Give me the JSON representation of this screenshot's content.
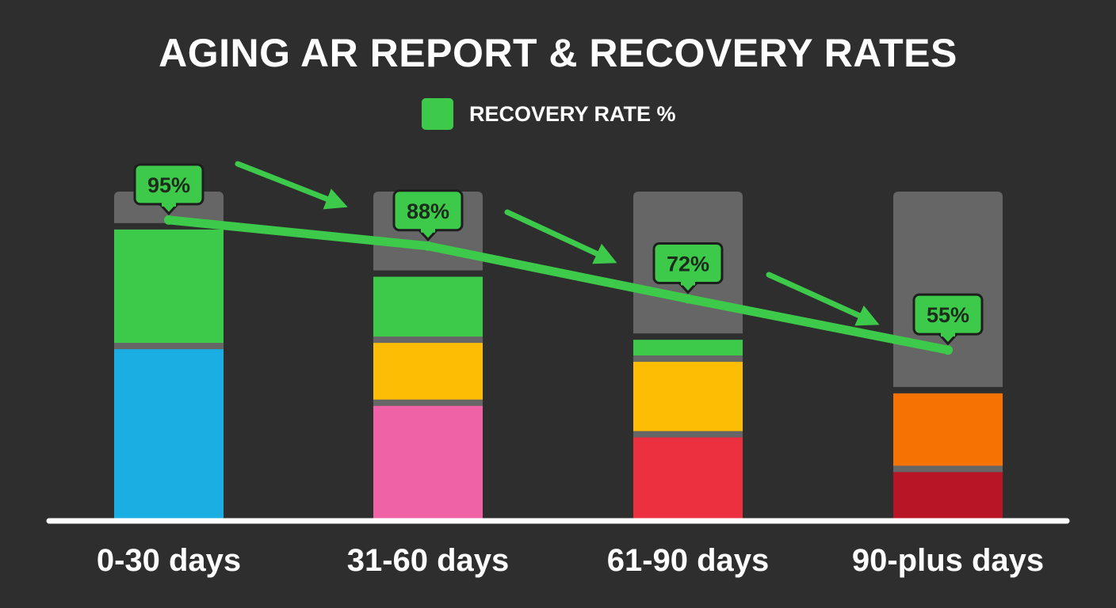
{
  "colors": {
    "background": "#2e2e2e",
    "track": "#666666",
    "recovery": "#3dc94a",
    "baseline": "#ffffff"
  },
  "legend": {
    "label": "RECOVERY RATE %",
    "color": "#3dc94a"
  },
  "chart_data": {
    "type": "bar",
    "title": "AGING AR REPORT & RECOVERY RATES",
    "xlabel": "",
    "ylabel": "",
    "ylim": [
      0,
      100
    ],
    "grid": false,
    "legend_position": "top-center",
    "categories": [
      "0-30 days",
      "31-60 days",
      "61-90 days",
      "90-plus days"
    ],
    "series": [
      {
        "name": "RECOVERY RATE %",
        "type": "line",
        "color": "#3dc94a",
        "values": [
          95,
          88,
          72,
          55
        ],
        "labels": [
          "95%",
          "88%",
          "72%",
          "55%"
        ]
      }
    ],
    "stacks": [
      {
        "category": "0-30 days",
        "segments": [
          {
            "value": 54,
            "color": "#1aaee3"
          },
          {
            "value": 38,
            "color": "#3dc94a"
          }
        ]
      },
      {
        "category": "31-60 days",
        "segments": [
          {
            "value": 36,
            "color": "#ef63a6"
          },
          {
            "value": 20,
            "color": "#fdbd05"
          },
          {
            "value": 21,
            "color": "#3dc94a"
          }
        ]
      },
      {
        "category": "61-90 days",
        "segments": [
          {
            "value": 26,
            "color": "#ed303f"
          },
          {
            "value": 24,
            "color": "#fdbd05"
          },
          {
            "value": 7,
            "color": "#3dc94a"
          }
        ]
      },
      {
        "category": "90-plus days",
        "segments": [
          {
            "value": 15,
            "color": "#b81527"
          },
          {
            "value": 25,
            "color": "#f57203"
          }
        ]
      }
    ]
  }
}
